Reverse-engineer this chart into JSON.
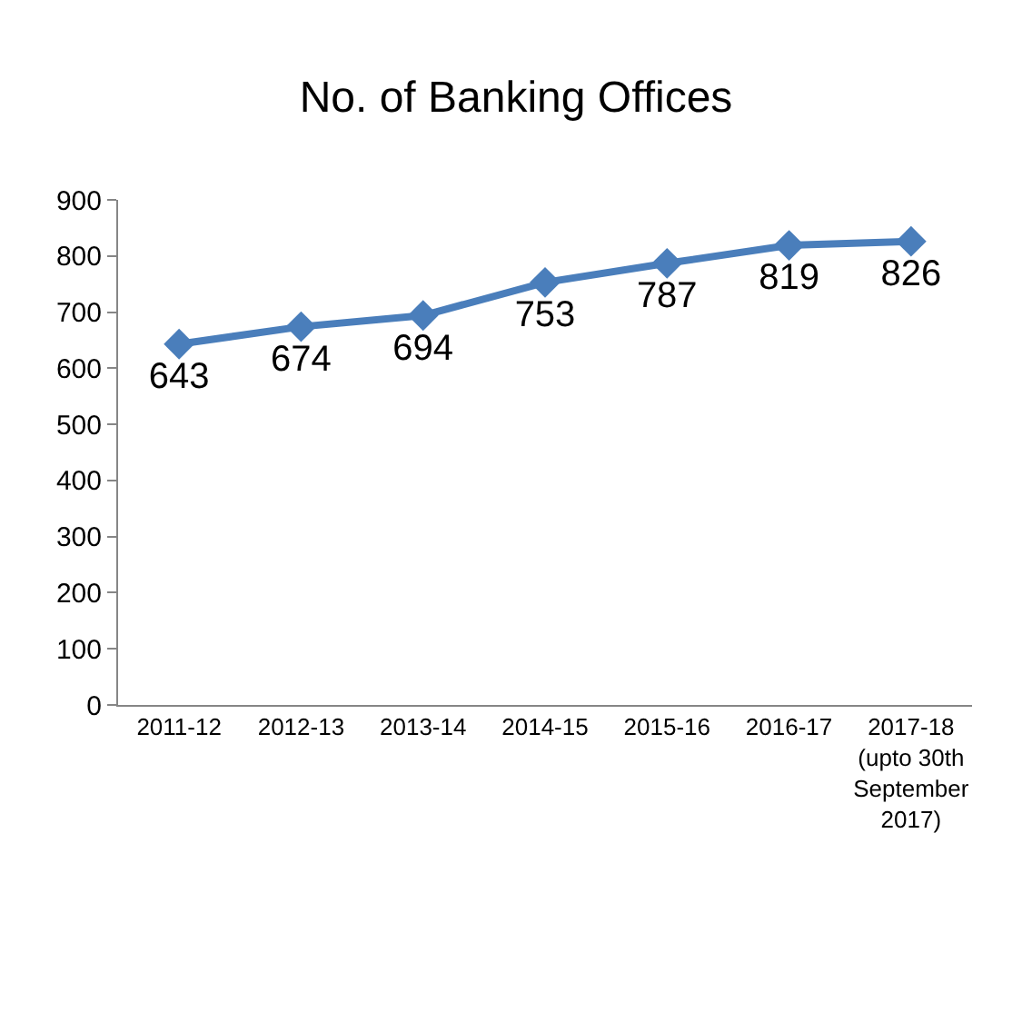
{
  "chart_data": {
    "type": "line",
    "title": "No. of Banking Offices",
    "categories": [
      "2011-12",
      "2012-13",
      "2013-14",
      "2014-15",
      "2015-16",
      "2016-17",
      "2017-18 (upto 30th September 2017)"
    ],
    "series": [
      {
        "color": "#4a7ebb",
        "values": [
          643,
          674,
          694,
          753,
          787,
          819,
          826
        ]
      }
    ],
    "ylim": [
      0,
      900
    ],
    "yticks": [
      0,
      100,
      200,
      300,
      400,
      500,
      600,
      700,
      800,
      900
    ],
    "data_labels": true,
    "marker": "diamond",
    "line_style": "solid",
    "legend": false
  }
}
